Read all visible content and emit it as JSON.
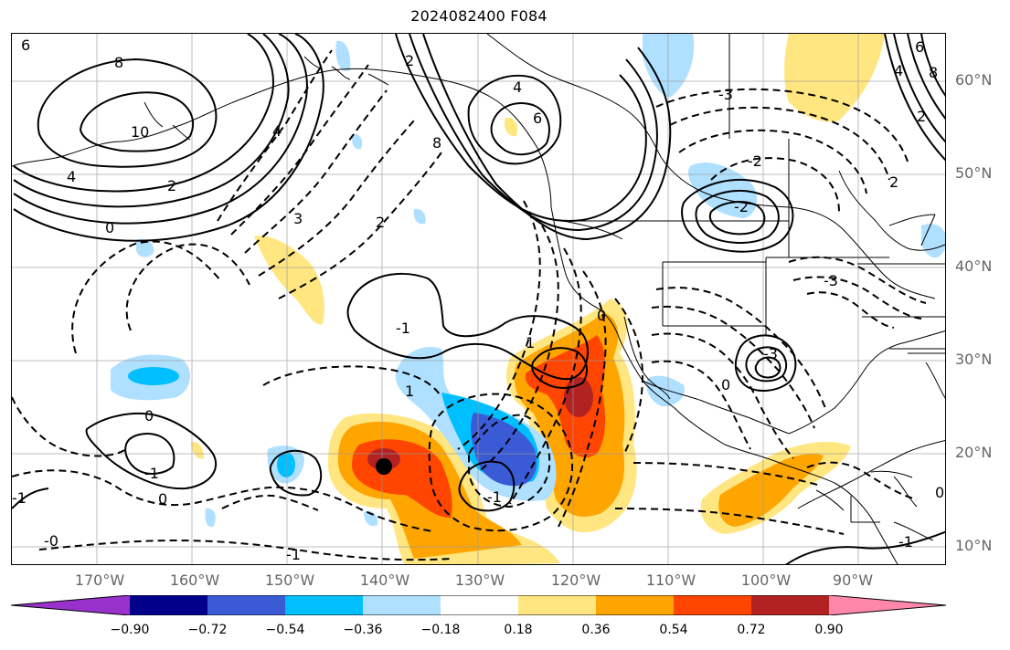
{
  "title": "2024082400 F084",
  "map": {
    "latitude_labels": [
      "60°N",
      "50°N",
      "40°N",
      "30°N",
      "20°N",
      "10°N"
    ],
    "longitude_labels": [
      "170°W",
      "160°W",
      "150°W",
      "140°W",
      "130°W",
      "120°W",
      "110°W",
      "100°W",
      "90°W"
    ],
    "contour_labels": [
      "6",
      "8",
      "10",
      "4",
      "2",
      "4",
      "8",
      "6",
      "4",
      "2",
      "3",
      "2",
      "0",
      "-1",
      "0",
      "-1",
      "1",
      "0",
      "-0",
      "-1",
      "-1",
      "1",
      "0",
      "-2",
      "-3",
      "-3",
      "0",
      "2",
      "-2",
      "-3",
      "8",
      "6",
      "4",
      "2",
      "0",
      "-1",
      "-1"
    ],
    "contour_style": "solid positive, dashed negative",
    "grid": true,
    "coastlines": true,
    "marker": "black dot"
  },
  "colorbar": {
    "ticks": [
      "−0.90",
      "−0.72",
      "−0.54",
      "−0.36",
      "−0.18",
      "0.18",
      "0.36",
      "0.54",
      "0.72",
      "0.90"
    ],
    "colors": [
      "#9932cc",
      "#00008b",
      "#3b5bd6",
      "#00bfff",
      "#b0e0ff",
      "#ffffff",
      "#ffe680",
      "#ffa500",
      "#ff4500",
      "#b22222",
      "#ff88aa"
    ]
  }
}
